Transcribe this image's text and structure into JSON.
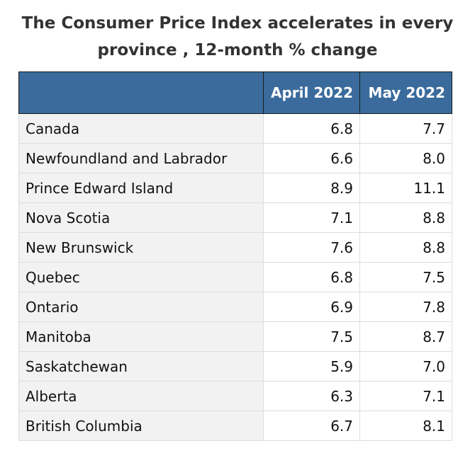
{
  "title": "The Consumer Price Index accelerates in every province , 12-month % change",
  "title_lines": [
    "The Consumer Price Index accelerates in every",
    "province , 12-month % change"
  ],
  "colors": {
    "header_bg": "#3a6b9c",
    "row_label_bg": "#f2f2f2"
  },
  "chart_data": {
    "type": "table",
    "title": "The Consumer Price Index accelerates in every province , 12-month % change",
    "columns": [
      "",
      "April 2022",
      "May 2022"
    ],
    "rows": [
      {
        "label": "Canada",
        "values": [
          "6.8",
          "7.7"
        ]
      },
      {
        "label": "Newfoundland and Labrador",
        "values": [
          "6.6",
          "8.0"
        ]
      },
      {
        "label": "Prince Edward Island",
        "values": [
          "8.9",
          "11.1"
        ]
      },
      {
        "label": "Nova Scotia",
        "values": [
          "7.1",
          "8.8"
        ]
      },
      {
        "label": "New Brunswick",
        "values": [
          "7.6",
          "8.8"
        ]
      },
      {
        "label": "Quebec",
        "values": [
          "6.8",
          "7.5"
        ]
      },
      {
        "label": "Ontario",
        "values": [
          "6.9",
          "7.8"
        ]
      },
      {
        "label": "Manitoba",
        "values": [
          "7.5",
          "8.7"
        ]
      },
      {
        "label": "Saskatchewan",
        "values": [
          "5.9",
          "7.0"
        ]
      },
      {
        "label": "Alberta",
        "values": [
          "6.3",
          "7.1"
        ]
      },
      {
        "label": "British Columbia",
        "values": [
          "6.7",
          "8.1"
        ]
      }
    ]
  }
}
